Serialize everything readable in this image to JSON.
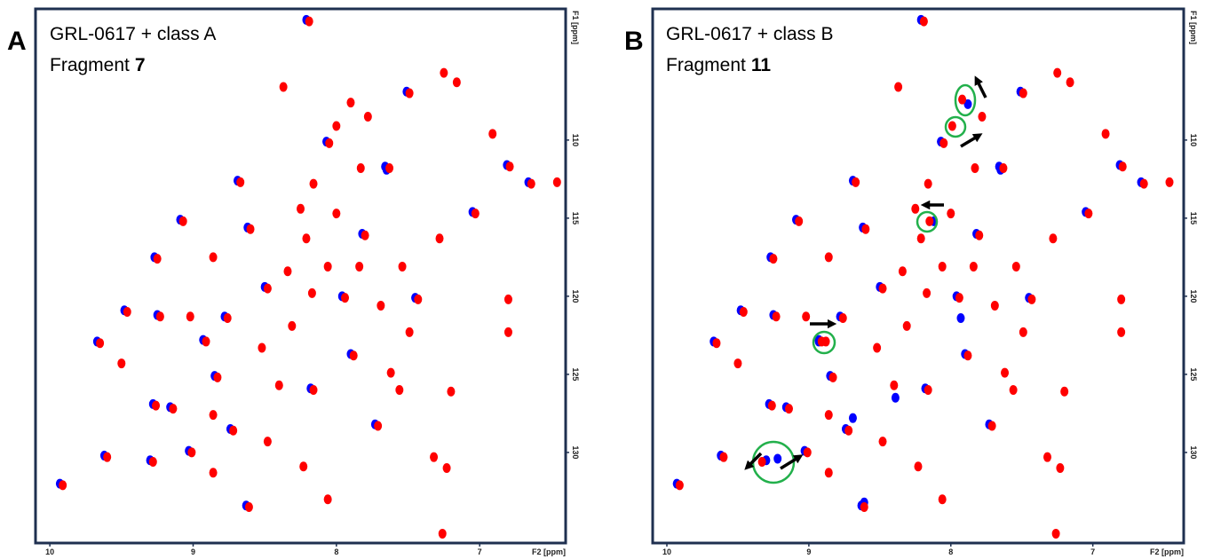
{
  "chart_data": [
    {
      "type": "scatter",
      "panel": "A",
      "title": "GRL-0617 + class A",
      "subtitle": "Fragment",
      "subtitle_bold": "7",
      "xlabel": "F2 [ppm]",
      "ylabel": "F1 [ppm]",
      "xlim": [
        10.1,
        6.4
      ],
      "ylim": [
        101.6,
        135.8
      ],
      "xticks": [
        10,
        9,
        8,
        7
      ],
      "yticks": [
        110,
        115,
        120,
        125,
        130
      ],
      "series": [
        {
          "color": "#0000ff",
          "x": [
            8.21,
            7.51,
            8.07,
            8.69,
            6.81,
            9.09,
            8.62,
            7.82,
            9.27,
            8.5,
            7.96,
            7.45,
            9.48,
            9.25,
            8.78,
            9.67,
            8.93,
            7.9,
            8.85,
            8.18,
            9.28,
            9.16,
            8.74,
            9.03,
            9.3,
            7.73,
            8.63,
            9.62,
            9.93,
            6.66,
            7.05,
            7.66,
            7.65
          ],
          "values": [
            102.3,
            106.9,
            110.1,
            112.6,
            111.6,
            115.1,
            115.6,
            116.0,
            117.5,
            119.4,
            120.0,
            120.1,
            120.9,
            121.2,
            121.3,
            122.9,
            122.8,
            123.7,
            125.1,
            125.9,
            126.9,
            127.1,
            128.5,
            129.9,
            130.5,
            128.2,
            133.4,
            130.2,
            132.0,
            112.7,
            114.6,
            111.7,
            111.9
          ]
        },
        {
          "color": "#ff0000",
          "x": [
            8.19,
            7.25,
            7.16,
            8.37,
            7.49,
            7.9,
            7.78,
            8.0,
            6.91,
            8.05,
            8.67,
            7.83,
            7.63,
            8.16,
            6.79,
            9.07,
            8.25,
            8.0,
            8.6,
            8.21,
            7.8,
            7.28,
            9.25,
            8.86,
            8.34,
            8.06,
            7.84,
            7.54,
            8.48,
            8.17,
            7.94,
            7.69,
            7.43,
            6.8,
            9.46,
            9.23,
            9.02,
            8.76,
            8.31,
            7.49,
            6.8,
            9.65,
            8.91,
            8.52,
            7.88,
            7.62,
            9.5,
            8.83,
            8.4,
            8.16,
            7.56,
            7.2,
            9.26,
            8.86,
            9.14,
            8.72,
            8.48,
            9.01,
            9.28,
            8.86,
            7.71,
            7.32,
            7.23,
            8.23,
            8.06,
            8.61,
            9.6,
            9.91,
            7.26,
            6.46,
            6.64,
            7.03
          ],
          "values": [
            102.4,
            105.7,
            106.3,
            106.6,
            107.0,
            107.6,
            108.5,
            109.1,
            109.6,
            110.2,
            112.7,
            111.8,
            111.8,
            112.8,
            111.7,
            115.2,
            114.4,
            114.7,
            115.7,
            116.3,
            116.1,
            116.3,
            117.6,
            117.5,
            118.4,
            118.1,
            118.1,
            118.1,
            119.5,
            119.8,
            120.1,
            120.6,
            120.2,
            120.2,
            121.0,
            121.3,
            121.3,
            121.4,
            121.9,
            122.3,
            122.3,
            123.0,
            122.9,
            123.3,
            123.8,
            124.9,
            124.3,
            125.2,
            125.7,
            126.0,
            126.0,
            126.1,
            127.0,
            127.6,
            127.2,
            128.6,
            129.3,
            130.0,
            130.6,
            131.3,
            128.3,
            130.3,
            131.0,
            130.9,
            133.0,
            133.5,
            130.3,
            132.1,
            135.2,
            112.7,
            112.8,
            114.7
          ]
        }
      ]
    },
    {
      "type": "scatter",
      "panel": "B",
      "title": "GRL-0617 + class B",
      "subtitle": "Fragment",
      "subtitle_bold": "11",
      "xlabel": "F2 [ppm]",
      "ylabel": "F1 [ppm]",
      "xlim": [
        10.1,
        6.36
      ],
      "ylim": [
        101.6,
        135.8
      ],
      "xticks": [
        10,
        9,
        8,
        7
      ],
      "yticks": [
        110,
        115,
        120,
        125,
        130
      ],
      "series": [
        {
          "color": "#0000ff",
          "x": [
            8.21,
            7.51,
            8.07,
            8.69,
            6.81,
            9.09,
            8.62,
            7.82,
            9.27,
            8.5,
            7.96,
            7.45,
            9.48,
            9.25,
            8.78,
            9.67,
            8.93,
            7.9,
            8.85,
            8.18,
            9.28,
            9.16,
            8.74,
            9.03,
            9.3,
            7.73,
            8.63,
            9.62,
            9.93,
            6.66,
            7.05,
            7.66,
            7.65,
            7.88,
            8.12,
            8.93,
            9.22,
            7.93,
            8.39,
            8.69,
            8.61
          ],
          "values": [
            102.3,
            106.9,
            110.1,
            112.6,
            111.6,
            115.1,
            115.6,
            116.0,
            117.5,
            119.4,
            120.0,
            120.1,
            120.9,
            121.2,
            121.3,
            122.9,
            122.8,
            123.7,
            125.1,
            125.9,
            126.9,
            127.1,
            128.5,
            129.9,
            130.5,
            128.2,
            133.4,
            130.2,
            132.0,
            112.7,
            114.6,
            111.7,
            111.9,
            107.7,
            115.2,
            122.9,
            130.4,
            121.4,
            126.5,
            127.8,
            133.2
          ]
        },
        {
          "color": "#ff0000",
          "x": [
            8.19,
            7.25,
            7.16,
            8.37,
            7.49,
            7.92,
            7.78,
            7.99,
            6.91,
            8.05,
            8.67,
            7.83,
            7.63,
            8.16,
            6.79,
            9.07,
            8.25,
            8.0,
            8.6,
            8.21,
            7.8,
            7.28,
            9.25,
            8.86,
            8.34,
            8.06,
            7.84,
            7.54,
            8.48,
            8.17,
            7.94,
            7.69,
            7.43,
            6.8,
            9.46,
            9.23,
            9.02,
            8.76,
            8.31,
            7.49,
            6.8,
            9.65,
            8.91,
            8.52,
            7.88,
            7.62,
            9.5,
            8.83,
            8.4,
            8.16,
            7.56,
            7.2,
            9.26,
            8.86,
            9.14,
            8.72,
            8.48,
            9.01,
            9.33,
            8.86,
            7.71,
            7.32,
            7.23,
            8.23,
            8.06,
            8.61,
            9.6,
            9.91,
            7.26,
            6.46,
            6.64,
            7.03,
            8.15,
            8.88
          ],
          "values": [
            102.4,
            105.7,
            106.3,
            106.6,
            107.0,
            107.4,
            108.5,
            109.1,
            109.6,
            110.2,
            112.7,
            111.8,
            111.8,
            112.8,
            111.7,
            115.2,
            114.4,
            114.7,
            115.7,
            116.3,
            116.1,
            116.3,
            117.6,
            117.5,
            118.4,
            118.1,
            118.1,
            118.1,
            119.5,
            119.8,
            120.1,
            120.6,
            120.2,
            120.2,
            121.0,
            121.3,
            121.3,
            121.4,
            121.9,
            122.3,
            122.3,
            123.0,
            122.9,
            123.3,
            123.8,
            124.9,
            124.3,
            125.2,
            125.7,
            126.0,
            126.0,
            126.1,
            127.0,
            127.6,
            127.2,
            128.6,
            129.3,
            130.0,
            130.6,
            131.3,
            128.3,
            130.3,
            131.0,
            130.9,
            133.0,
            133.5,
            130.3,
            132.1,
            135.2,
            112.7,
            112.8,
            114.7,
            115.2,
            122.9
          ]
        }
      ]
    }
  ]
}
